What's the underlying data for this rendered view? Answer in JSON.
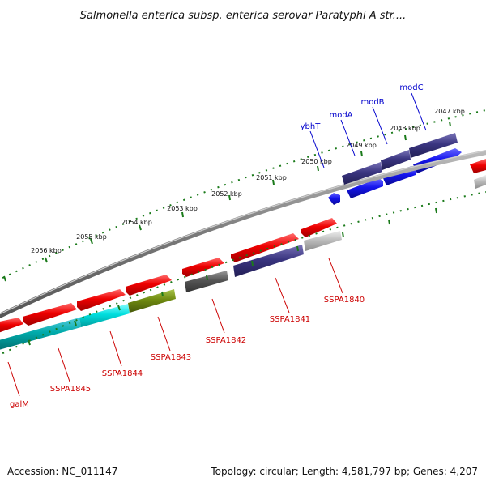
{
  "title": "Salmonella enterica subsp. enterica serovar Paratyphi A str....",
  "footer": {
    "accession": "Accession: NC_011147",
    "summary": "Topology: circular; Length: 4,581,797 bp; Genes: 4,207"
  },
  "scale_labels": [
    "2047 kbp",
    "2048 kbp",
    "2049 kbp",
    "2050 kbp",
    "2051 kbp",
    "2052 kbp",
    "2053 kbp",
    "2054 kbp",
    "2055 kbp",
    "2056 kbp"
  ],
  "gene_labels": {
    "blue": [
      "modC",
      "modB",
      "modA",
      "ybhT"
    ],
    "red": [
      "SSPA1840",
      "SSPA1841",
      "SSPA1842",
      "SSPA1843",
      "SSPA1844",
      "SSPA1845",
      "galM"
    ]
  },
  "colors": {
    "forward_gene": "#e60000",
    "reverse_gene": "#1414ee",
    "tick_marks": "#1a7a1a",
    "backbone": "#8a8a8a",
    "blue_label": "#0000cc",
    "red_label": "#cc0000",
    "bar_navy": "#3a3580",
    "bar_cyan": "#00dede",
    "bar_teal": "#00b0b0",
    "bar_olive": "#6f8a10",
    "bar_darkgray": "#555555",
    "bar_lightgray": "#bdbdbd"
  }
}
